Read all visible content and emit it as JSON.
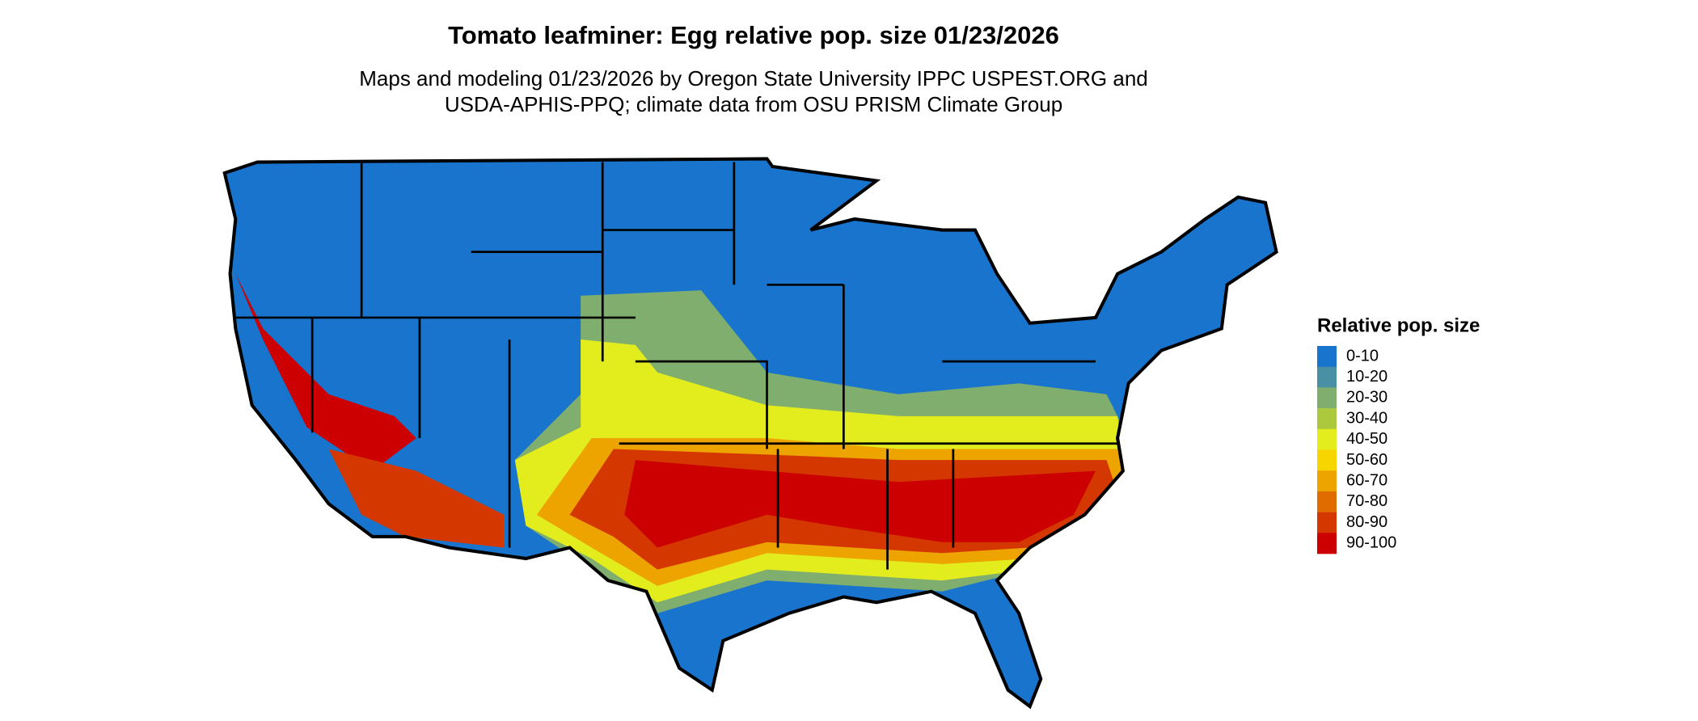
{
  "header": {
    "title": "Tomato leafminer: Egg relative pop. size 01/23/2026",
    "subtitle": [
      "Maps and modeling 01/23/2026 by Oregon State University IPPC USPEST.ORG and",
      "USDA-APHIS-PPQ; climate data from OSU PRISM Climate Group"
    ]
  },
  "legend": {
    "title": "Relative pop. size",
    "items": [
      {
        "label": "0-10",
        "color": "#1874cd"
      },
      {
        "label": "10-20",
        "color": "#4a90a4"
      },
      {
        "label": "20-30",
        "color": "#7fae6f"
      },
      {
        "label": "30-40",
        "color": "#acc93e"
      },
      {
        "label": "40-50",
        "color": "#e3ec1c"
      },
      {
        "label": "50-60",
        "color": "#f7d500"
      },
      {
        "label": "60-70",
        "color": "#eda300"
      },
      {
        "label": "70-80",
        "color": "#e06c00"
      },
      {
        "label": "80-90",
        "color": "#d43800"
      },
      {
        "label": "90-100",
        "color": "#cc0000"
      }
    ]
  }
}
